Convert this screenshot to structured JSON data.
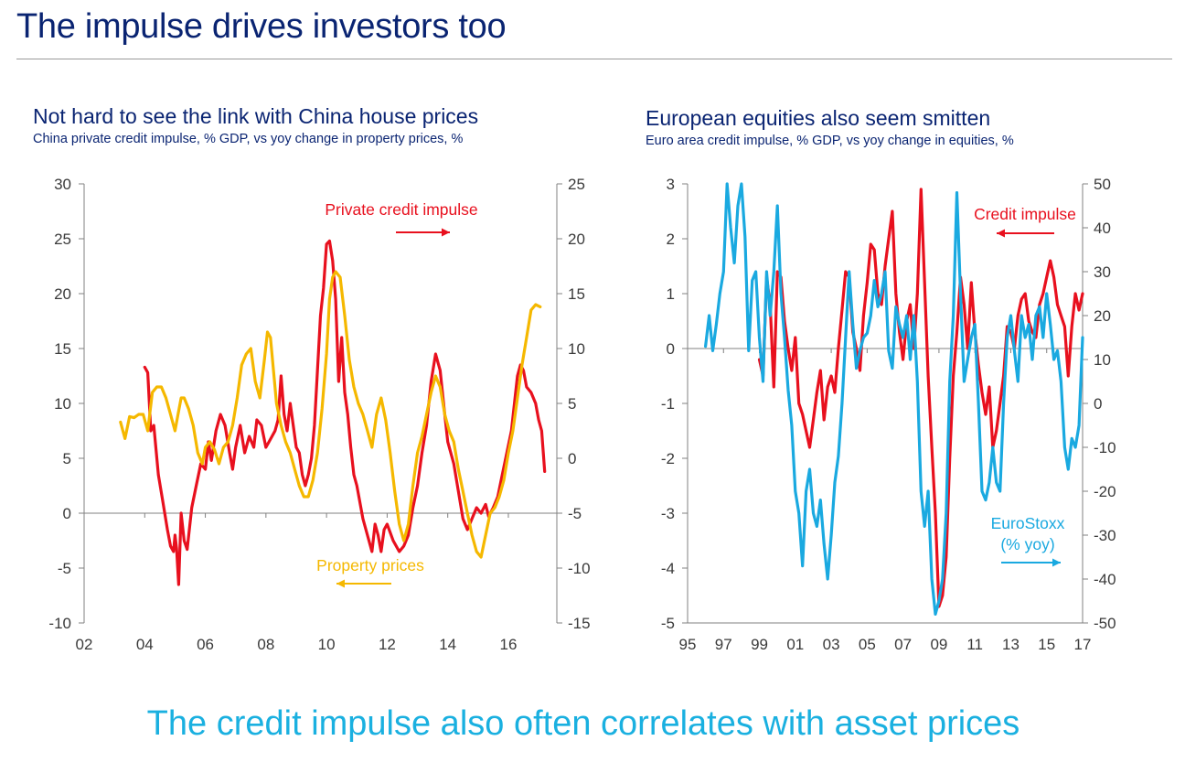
{
  "page": {
    "title": "The impulse drives investors too",
    "caption": "The credit impulse also often correlates with asset prices"
  },
  "charts": {
    "left": {
      "title": "Not hard to see the link with China house prices",
      "subtitle": "China private credit impulse, % GDP, vs yoy change in property prices, %"
    },
    "right": {
      "title": "European equities also seem smitten",
      "subtitle": "Euro area credit impulse, % GDP, vs yoy change in equities, %"
    }
  },
  "colors": {
    "title": "#0a2472",
    "caption": "#1ab0e0",
    "red": "#e8101e",
    "orange": "#f5b800",
    "blue": "#1aa9e0",
    "axis": "#808080",
    "tick_text": "#3a3a3a"
  },
  "chart_data": [
    {
      "type": "line",
      "title": "Not hard to see the link with China house prices",
      "subtitle": "China private credit impulse, % GDP, vs yoy change in property prices, %",
      "x_ticks": [
        "02",
        "04",
        "06",
        "08",
        "10",
        "12",
        "14",
        "16"
      ],
      "x_range": [
        2002,
        2017.6
      ],
      "y_left": {
        "range": [
          -10,
          30
        ],
        "ticks": [
          30,
          25,
          20,
          15,
          10,
          5,
          0,
          -5,
          -10
        ]
      },
      "y_right": {
        "range": [
          -15,
          25
        ],
        "ticks": [
          25,
          20,
          15,
          10,
          5,
          0,
          -5,
          -10,
          -15
        ]
      },
      "annotations": [
        {
          "text": "Private credit impulse",
          "color": "#e8101e",
          "arrow": "right"
        },
        {
          "text": "Property prices",
          "color": "#f5b800",
          "arrow": "left"
        }
      ],
      "series": [
        {
          "name": "Private credit impulse",
          "axis": "left",
          "color": "#e8101e",
          "x": [
            2004.0,
            2004.1,
            2004.2,
            2004.3,
            2004.45,
            2004.6,
            2004.75,
            2004.85,
            2004.95,
            2005.0,
            2005.05,
            2005.12,
            2005.2,
            2005.3,
            2005.4,
            2005.55,
            2005.7,
            2005.85,
            2006.0,
            2006.1,
            2006.2,
            2006.35,
            2006.5,
            2006.65,
            2006.8,
            2006.9,
            2007.0,
            2007.15,
            2007.3,
            2007.45,
            2007.6,
            2007.7,
            2007.85,
            2008.0,
            2008.1,
            2008.2,
            2008.3,
            2008.4,
            2008.5,
            2008.6,
            2008.7,
            2008.8,
            2008.9,
            2009.0,
            2009.1,
            2009.2,
            2009.3,
            2009.4,
            2009.5,
            2009.6,
            2009.7,
            2009.8,
            2009.9,
            2010.0,
            2010.1,
            2010.2,
            2010.3,
            2010.4,
            2010.5,
            2010.6,
            2010.7,
            2010.8,
            2010.9,
            2011.0,
            2011.1,
            2011.2,
            2011.3,
            2011.4,
            2011.5,
            2011.6,
            2011.7,
            2011.8,
            2011.9,
            2012.0,
            2012.2,
            2012.4,
            2012.55,
            2012.7,
            2012.85,
            2013.0,
            2013.15,
            2013.3,
            2013.45,
            2013.6,
            2013.75,
            2013.9,
            2014.0,
            2014.2,
            2014.35,
            2014.5,
            2014.65,
            2014.8,
            2014.95,
            2015.1,
            2015.25,
            2015.35,
            2015.5,
            2015.65,
            2015.8,
            2015.95,
            2016.1,
            2016.2,
            2016.3,
            2016.4,
            2016.5,
            2016.6,
            2016.75,
            2016.9,
            2017.0,
            2017.1,
            2017.2
          ],
          "y": [
            13.3,
            12.8,
            7.5,
            8.0,
            3.5,
            1.0,
            -1.5,
            -3.0,
            -3.5,
            -2.0,
            -3.2,
            -6.5,
            0.0,
            -2.5,
            -3.3,
            0.5,
            2.5,
            4.5,
            4.0,
            6.5,
            4.8,
            7.5,
            9.0,
            8.0,
            5.5,
            4.0,
            6.0,
            8.0,
            5.5,
            7.0,
            6.0,
            8.5,
            8.0,
            6.0,
            6.5,
            7.0,
            7.5,
            8.5,
            12.5,
            9.0,
            7.5,
            10.0,
            8.0,
            6.0,
            5.5,
            3.5,
            2.5,
            3.5,
            5.0,
            8.0,
            13.0,
            18.0,
            20.5,
            24.5,
            24.8,
            23.0,
            19.5,
            12.0,
            16.0,
            11.0,
            9.0,
            6.0,
            3.5,
            2.5,
            1.0,
            -0.5,
            -1.5,
            -2.5,
            -3.5,
            -1.0,
            -2.0,
            -3.5,
            -1.5,
            -1.0,
            -2.5,
            -3.5,
            -3.0,
            -2.0,
            0.5,
            2.5,
            5.5,
            8.0,
            12.0,
            14.5,
            13.0,
            9.0,
            6.5,
            4.5,
            2.0,
            -0.5,
            -1.5,
            -0.5,
            0.5,
            0.0,
            0.8,
            -0.3,
            0.5,
            1.5,
            3.5,
            5.5,
            7.5,
            10.0,
            12.5,
            13.5,
            13.0,
            11.5,
            11.0,
            10.0,
            8.5,
            7.5,
            3.8
          ]
        },
        {
          "name": "Property prices",
          "axis": "right",
          "color": "#f5b800",
          "x": [
            2003.2,
            2003.35,
            2003.5,
            2003.65,
            2003.8,
            2003.95,
            2004.1,
            2004.25,
            2004.4,
            2004.55,
            2004.7,
            2004.85,
            2005.0,
            2005.1,
            2005.2,
            2005.3,
            2005.45,
            2005.6,
            2005.75,
            2005.9,
            2006.0,
            2006.15,
            2006.3,
            2006.45,
            2006.6,
            2006.75,
            2006.9,
            2007.05,
            2007.2,
            2007.35,
            2007.5,
            2007.65,
            2007.8,
            2007.95,
            2008.05,
            2008.15,
            2008.25,
            2008.35,
            2008.5,
            2008.65,
            2008.8,
            2008.95,
            2009.1,
            2009.25,
            2009.4,
            2009.55,
            2009.7,
            2009.85,
            2010.0,
            2010.1,
            2010.2,
            2010.3,
            2010.45,
            2010.6,
            2010.75,
            2010.9,
            2011.05,
            2011.2,
            2011.35,
            2011.5,
            2011.65,
            2011.8,
            2011.95,
            2012.1,
            2012.25,
            2012.4,
            2012.55,
            2012.7,
            2012.85,
            2013.0,
            2013.15,
            2013.3,
            2013.45,
            2013.6,
            2013.75,
            2013.9,
            2014.05,
            2014.2,
            2014.35,
            2014.5,
            2014.65,
            2014.8,
            2014.95,
            2015.1,
            2015.25,
            2015.4,
            2015.55,
            2015.7,
            2015.85,
            2016.0,
            2016.15,
            2016.3,
            2016.45,
            2016.6,
            2016.75,
            2016.9,
            2017.05
          ],
          "y": [
            3.3,
            1.8,
            3.8,
            3.7,
            4.0,
            4.0,
            2.5,
            6.0,
            6.5,
            6.5,
            5.5,
            4.0,
            2.5,
            4.0,
            5.5,
            5.5,
            4.5,
            3.0,
            0.5,
            -0.5,
            1.0,
            1.5,
            0.8,
            -0.5,
            1.0,
            1.5,
            3.0,
            5.5,
            8.5,
            9.5,
            10.0,
            7.0,
            5.5,
            9.0,
            11.5,
            11.0,
            8.0,
            5.0,
            3.0,
            1.5,
            0.5,
            -1.0,
            -2.5,
            -3.5,
            -3.5,
            -2.0,
            0.5,
            4.5,
            9.5,
            14.5,
            16.5,
            17.0,
            16.5,
            13.0,
            9.0,
            6.5,
            5.0,
            4.0,
            2.5,
            1.0,
            4.0,
            5.5,
            3.5,
            0.5,
            -3.0,
            -6.0,
            -7.5,
            -6.0,
            -2.5,
            0.5,
            2.0,
            4.0,
            6.0,
            7.5,
            6.5,
            4.0,
            2.5,
            1.5,
            -1.0,
            -3.0,
            -5.0,
            -7.0,
            -8.5,
            -9.0,
            -7.0,
            -5.0,
            -4.5,
            -3.5,
            -2.0,
            0.5,
            2.5,
            5.5,
            8.5,
            11.0,
            13.5,
            14.0,
            13.8
          ]
        }
      ]
    },
    {
      "type": "line",
      "title": "European equities also seem smitten",
      "subtitle": "Euro area credit impulse, % GDP, vs yoy change in equities, %",
      "x_ticks": [
        "95",
        "97",
        "99",
        "01",
        "03",
        "05",
        "07",
        "09",
        "11",
        "13",
        "15",
        "17"
      ],
      "x_range": [
        1995,
        2017
      ],
      "y_left": {
        "range": [
          -5,
          3
        ],
        "ticks": [
          3,
          2,
          1,
          0,
          -1,
          -2,
          -3,
          -4,
          -5
        ]
      },
      "y_right": {
        "range": [
          -50,
          50
        ],
        "ticks": [
          50,
          40,
          30,
          20,
          10,
          0,
          -10,
          -20,
          -30,
          -40,
          -50
        ]
      },
      "annotations": [
        {
          "text": "Credit impulse",
          "color": "#e8101e",
          "arrow": "left"
        },
        {
          "text": "EuroStoxx",
          "color": "#1aa9e0"
        },
        {
          "text": "(% yoy)",
          "color": "#1aa9e0",
          "arrow": "right"
        }
      ],
      "series": [
        {
          "name": "Credit impulse",
          "axis": "left",
          "color": "#e8101e",
          "x": [
            1999.0,
            1999.2,
            1999.4,
            1999.6,
            1999.8,
            2000.0,
            2000.2,
            2000.4,
            2000.6,
            2000.8,
            2001.0,
            2001.2,
            2001.4,
            2001.6,
            2001.8,
            2002.0,
            2002.2,
            2002.4,
            2002.6,
            2002.8,
            2003.0,
            2003.2,
            2003.4,
            2003.6,
            2003.8,
            2004.0,
            2004.2,
            2004.4,
            2004.6,
            2004.8,
            2005.0,
            2005.2,
            2005.4,
            2005.6,
            2005.8,
            2006.0,
            2006.2,
            2006.4,
            2006.6,
            2006.8,
            2007.0,
            2007.2,
            2007.4,
            2007.6,
            2007.8,
            2008.0,
            2008.2,
            2008.4,
            2008.6,
            2008.8,
            2009.0,
            2009.2,
            2009.4,
            2009.6,
            2009.8,
            2010.0,
            2010.2,
            2010.4,
            2010.6,
            2010.8,
            2011.0,
            2011.2,
            2011.4,
            2011.6,
            2011.8,
            2012.0,
            2012.2,
            2012.4,
            2012.6,
            2012.8,
            2013.0,
            2013.2,
            2013.4,
            2013.6,
            2013.8,
            2014.0,
            2014.2,
            2014.4,
            2014.6,
            2014.8,
            2015.0,
            2015.2,
            2015.4,
            2015.6,
            2015.8,
            2016.0,
            2016.2,
            2016.4,
            2016.6,
            2016.8,
            2017.0
          ],
          "y": [
            -0.2,
            -0.5,
            1.3,
            0.8,
            -0.7,
            1.4,
            1.3,
            0.5,
            0.0,
            -0.4,
            0.2,
            -1.0,
            -1.2,
            -1.5,
            -1.8,
            -1.3,
            -0.8,
            -0.4,
            -1.3,
            -0.7,
            -0.5,
            -0.8,
            0.0,
            0.7,
            1.4,
            1.3,
            0.3,
            0.0,
            -0.4,
            0.6,
            1.2,
            1.9,
            1.8,
            1.0,
            0.8,
            1.5,
            2.0,
            2.5,
            1.0,
            0.3,
            -0.2,
            0.5,
            0.8,
            0.0,
            1.0,
            2.9,
            1.2,
            -0.5,
            -1.8,
            -3.0,
            -4.7,
            -4.5,
            -3.8,
            -2.0,
            -0.5,
            0.3,
            1.3,
            0.8,
            0.0,
            1.2,
            0.3,
            -0.3,
            -0.8,
            -1.2,
            -0.7,
            -1.8,
            -1.5,
            -1.0,
            -0.5,
            0.4,
            0.3,
            0.0,
            0.6,
            0.9,
            1.0,
            0.5,
            0.3,
            0.2,
            0.8,
            1.0,
            1.3,
            1.6,
            1.3,
            0.8,
            0.6,
            0.4,
            -0.5,
            0.4,
            1.0,
            0.7,
            1.0
          ]
        },
        {
          "name": "EuroStoxx (% yoy)",
          "axis": "right",
          "color": "#1aa9e0",
          "x": [
            1996.0,
            1996.2,
            1996.4,
            1996.6,
            1996.8,
            1997.0,
            1997.2,
            1997.4,
            1997.6,
            1997.8,
            1998.0,
            1998.2,
            1998.4,
            1998.6,
            1998.8,
            1999.0,
            1999.2,
            1999.4,
            1999.6,
            1999.8,
            2000.0,
            2000.2,
            2000.4,
            2000.6,
            2000.8,
            2001.0,
            2001.2,
            2001.4,
            2001.6,
            2001.8,
            2002.0,
            2002.2,
            2002.4,
            2002.6,
            2002.8,
            2003.0,
            2003.2,
            2003.4,
            2003.6,
            2003.8,
            2004.0,
            2004.2,
            2004.4,
            2004.6,
            2004.8,
            2005.0,
            2005.2,
            2005.4,
            2005.6,
            2005.8,
            2006.0,
            2006.2,
            2006.4,
            2006.6,
            2006.8,
            2007.0,
            2007.2,
            2007.4,
            2007.6,
            2007.8,
            2008.0,
            2008.2,
            2008.4,
            2008.6,
            2008.8,
            2009.0,
            2009.2,
            2009.4,
            2009.6,
            2009.8,
            2010.0,
            2010.2,
            2010.4,
            2010.6,
            2010.8,
            2011.0,
            2011.2,
            2011.4,
            2011.6,
            2011.8,
            2012.0,
            2012.2,
            2012.4,
            2012.6,
            2012.8,
            2013.0,
            2013.2,
            2013.4,
            2013.6,
            2013.8,
            2014.0,
            2014.2,
            2014.4,
            2014.6,
            2014.8,
            2015.0,
            2015.2,
            2015.4,
            2015.6,
            2015.8,
            2016.0,
            2016.2,
            2016.4,
            2016.6,
            2016.8,
            2017.0
          ],
          "y": [
            13,
            20,
            12,
            18,
            25,
            30,
            50,
            40,
            32,
            45,
            50,
            38,
            12,
            28,
            30,
            15,
            5,
            30,
            20,
            30,
            45,
            25,
            15,
            3,
            -5,
            -20,
            -25,
            -37,
            -20,
            -15,
            -25,
            -28,
            -22,
            -32,
            -40,
            -30,
            -18,
            -12,
            0,
            15,
            30,
            18,
            8,
            12,
            15,
            16,
            20,
            28,
            22,
            25,
            30,
            12,
            8,
            22,
            18,
            15,
            20,
            10,
            20,
            5,
            -20,
            -28,
            -20,
            -40,
            -48,
            -45,
            -40,
            -25,
            5,
            20,
            48,
            25,
            5,
            10,
            15,
            18,
            0,
            -20,
            -22,
            -18,
            -10,
            -18,
            -20,
            0,
            15,
            20,
            12,
            5,
            20,
            15,
            18,
            10,
            20,
            22,
            15,
            25,
            18,
            10,
            12,
            5,
            -10,
            -15,
            -8,
            -10,
            -5,
            15
          ]
        }
      ]
    }
  ]
}
